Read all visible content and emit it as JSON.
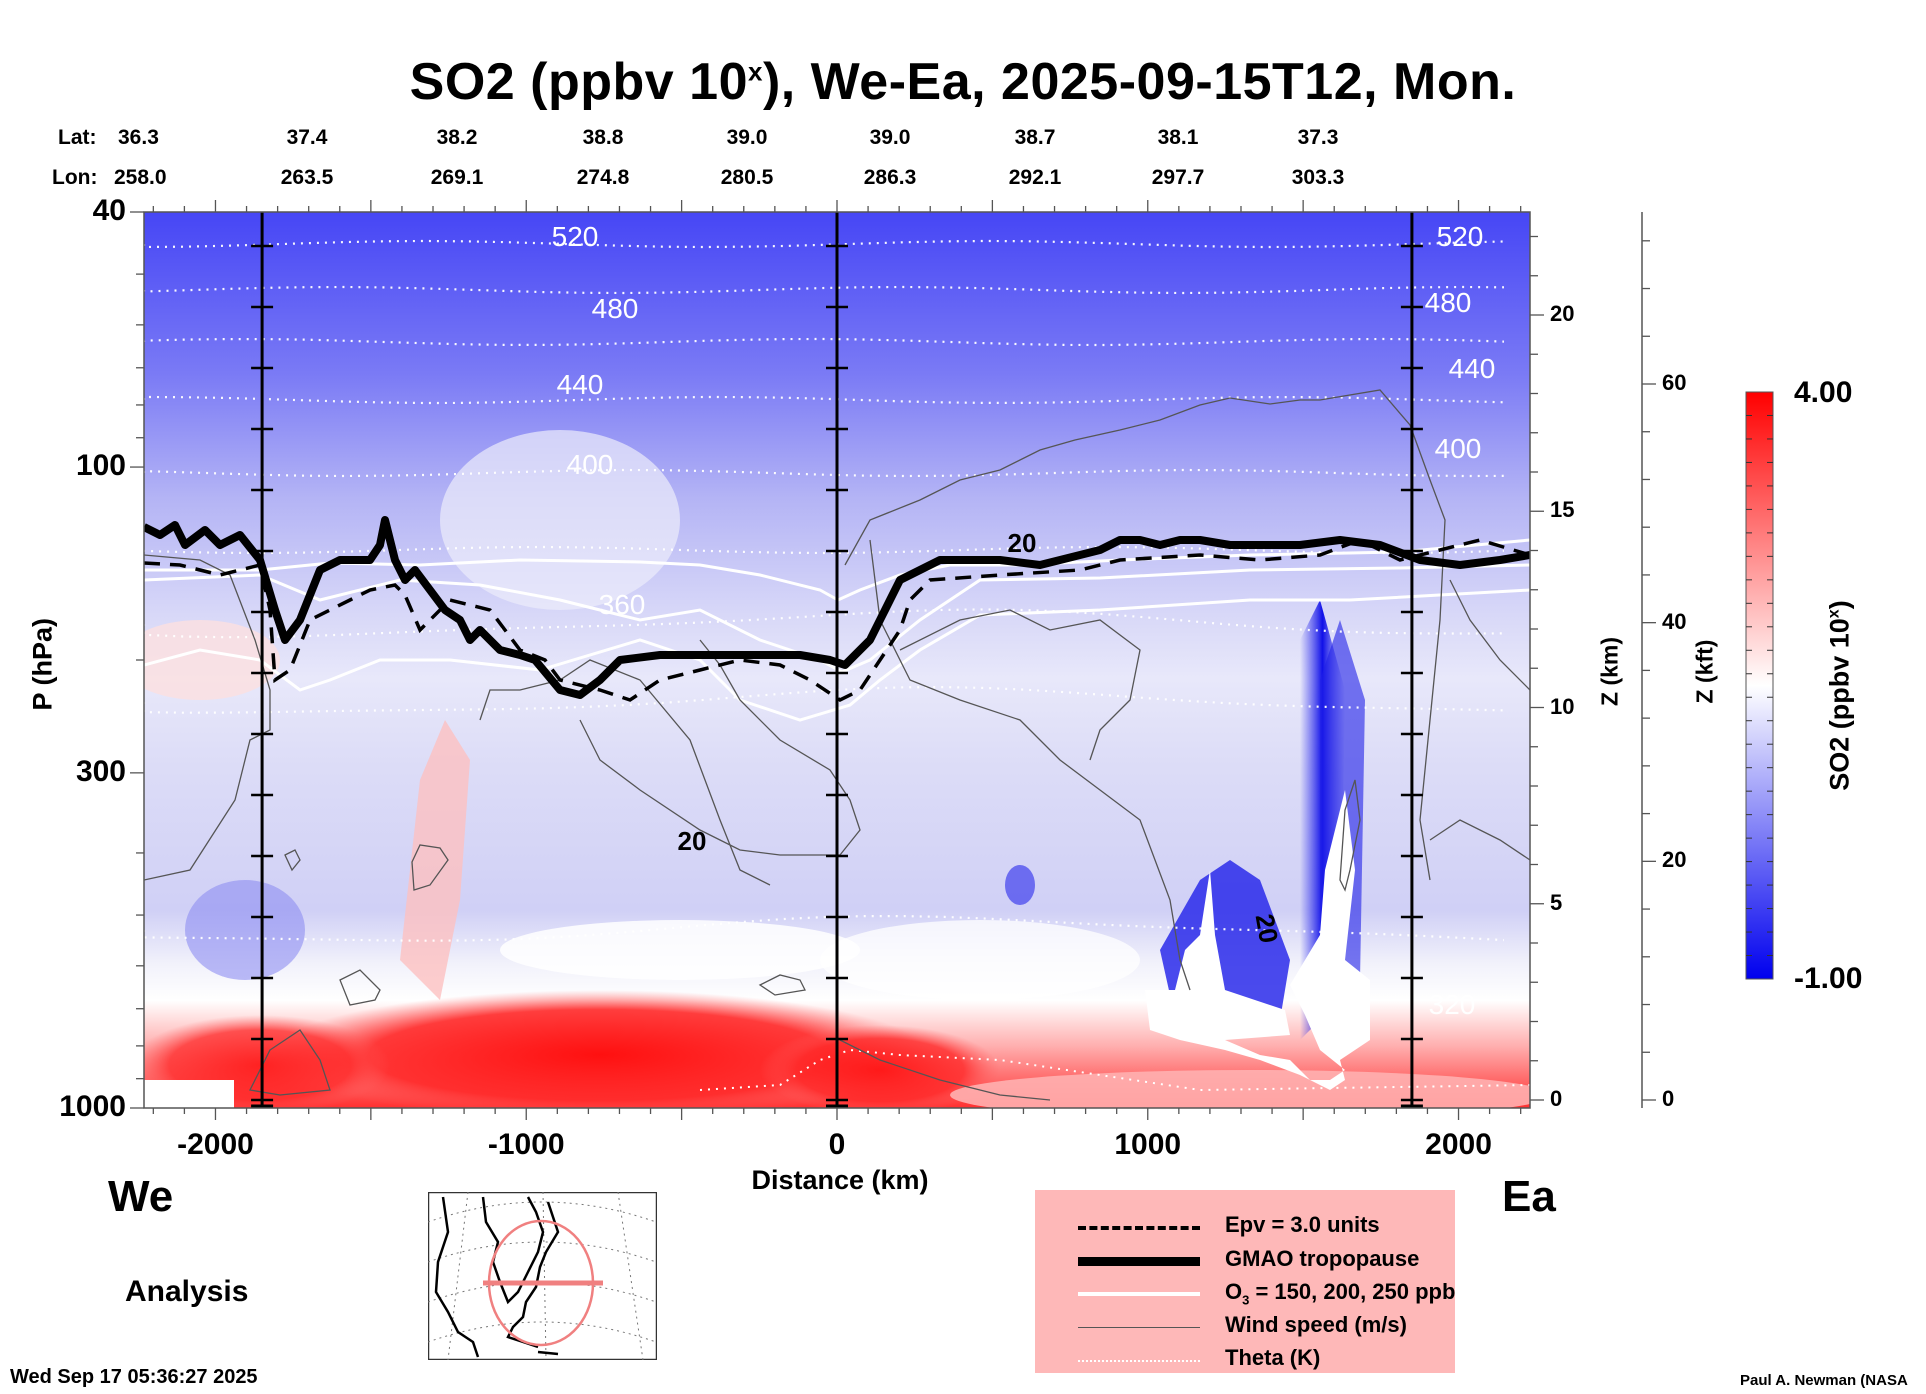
{
  "chart_data": {
    "type": "heatmap",
    "title": "SO2 (ppbv 10^x), We-Ea, 2025-09-15T12, Mon.",
    "title_main": "SO2 (ppbv 10",
    "title_sup": "x",
    "title_rest": "), We-Ea, 2025-09-15T12, Mon.",
    "xlabel": "Distance (km)",
    "ylabel": "P (hPa)",
    "xlim": [
      -2230,
      2230
    ],
    "ylim": [
      1000,
      40
    ],
    "y_scale": "log",
    "x_ticks": [
      -2000,
      -1000,
      0,
      1000,
      2000
    ],
    "x_tick_labels": [
      "-2000",
      "-1000",
      "0",
      "1000",
      "2000"
    ],
    "y_ticks": [
      40,
      100,
      300,
      1000
    ],
    "y_tick_labels": [
      "40",
      "100",
      "300",
      "1000"
    ],
    "z_km_axis": {
      "label": "Z (km)",
      "ticks": [
        0,
        5,
        10,
        15,
        20
      ],
      "tick_labels": [
        "0",
        "5",
        "10",
        "15",
        "20"
      ]
    },
    "z_kft_axis": {
      "label": "Z (kft)",
      "ticks": [
        0,
        20,
        40,
        60
      ],
      "tick_labels": [
        "0",
        "20",
        "40",
        "60"
      ]
    },
    "top_axis": {
      "lat_label": "Lat:",
      "lon_label": "Lon:",
      "lat": [
        "36.3",
        "37.4",
        "38.2",
        "38.8",
        "39.0",
        "39.0",
        "38.7",
        "38.1",
        "37.3"
      ],
      "lon": [
        "258.0",
        "263.5",
        "269.1",
        "274.8",
        "280.5",
        "286.3",
        "292.1",
        "297.7",
        "303.3"
      ]
    },
    "colorbar": {
      "label": "SO2 (ppbv 10^x)",
      "label_main": "SO2 (ppbv 10",
      "label_sup": "x",
      "label_end": ")",
      "min": -1.0,
      "max": 4.0,
      "min_label": "-1.00",
      "max_label": "4.00",
      "colors": [
        "#0000ee",
        "#ffffff",
        "#ff0000"
      ]
    },
    "vertical_markers_km": [
      -1850,
      0,
      1850
    ],
    "theta_contours_K": [
      {
        "value": 520,
        "label": "520"
      },
      {
        "value": 480,
        "label": "480"
      },
      {
        "value": 440,
        "label": "440"
      },
      {
        "value": 400,
        "label": "400"
      },
      {
        "value": 360,
        "label": "360"
      },
      {
        "value": 320,
        "label": "320"
      }
    ],
    "wind_speed_labels": [
      "20",
      "20",
      "20"
    ],
    "tropopause_approx_hPa": [
      {
        "x": -2230,
        "p": 120
      },
      {
        "x": -1900,
        "p": 130
      },
      {
        "x": -1800,
        "p": 195
      },
      {
        "x": -1650,
        "p": 140
      },
      {
        "x": -1450,
        "p": 130
      },
      {
        "x": -1250,
        "p": 180
      },
      {
        "x": -1000,
        "p": 200
      },
      {
        "x": -700,
        "p": 230
      },
      {
        "x": -500,
        "p": 200
      },
      {
        "x": -100,
        "p": 200
      },
      {
        "x": 0,
        "p": 210
      },
      {
        "x": 250,
        "p": 140
      },
      {
        "x": 600,
        "p": 140
      },
      {
        "x": 1000,
        "p": 125
      },
      {
        "x": 1500,
        "p": 140
      },
      {
        "x": 2230,
        "p": 135
      }
    ],
    "legend": [
      {
        "style": "dashed",
        "label": "Epv = 3.0 units"
      },
      {
        "style": "thick",
        "label": "GMAO tropopause"
      },
      {
        "style": "white",
        "label_main": "O",
        "label_sub": "3",
        "label_rest": " = 150, 200, 250 ppb"
      },
      {
        "style": "thin",
        "label": "Wind speed (m/s)"
      },
      {
        "style": "dotted",
        "label": "Theta (K)"
      }
    ]
  },
  "labels": {
    "west": "We",
    "east": "Ea",
    "analysis": "Analysis",
    "timestamp": "Wed Sep 17 05:36:27 2025",
    "credit": "Paul A. Newman (NASA"
  },
  "colors": {
    "legend_bg": "#feb8b8",
    "map_circle": "#f08080"
  }
}
